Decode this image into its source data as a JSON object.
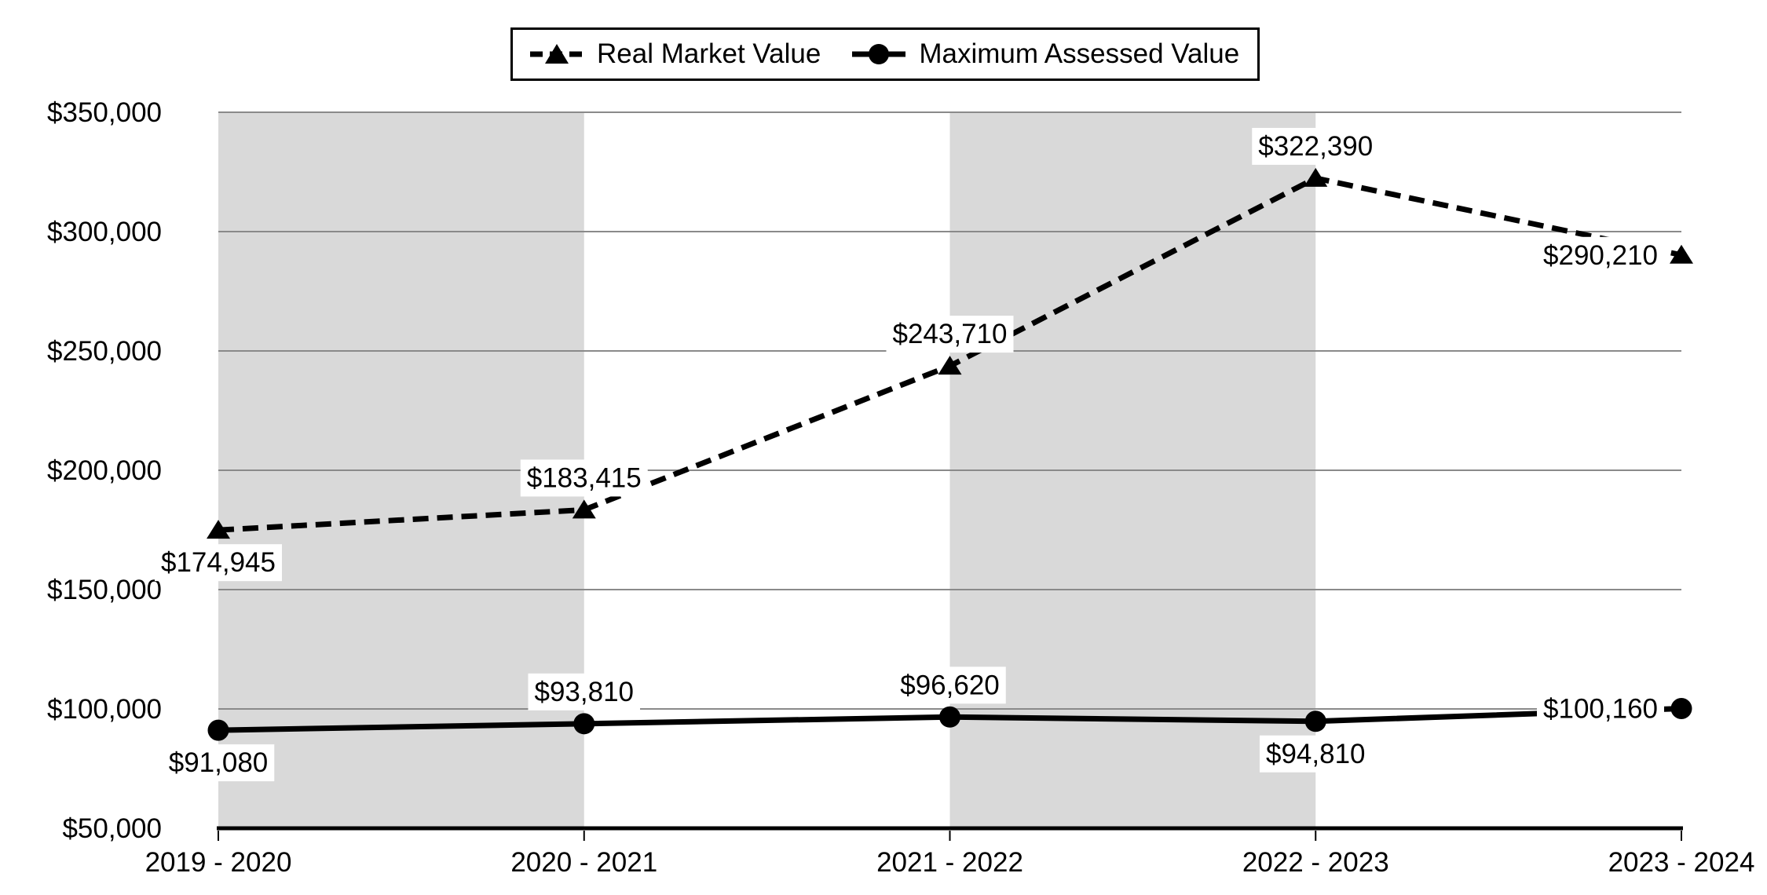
{
  "chart_data": {
    "type": "line",
    "title": "",
    "categories": [
      "2019 - 2020",
      "2020 - 2021",
      "2021 - 2022",
      "2022 - 2023",
      "2023 - 2024"
    ],
    "series": [
      {
        "name": "Real Market Value",
        "style": "dashed",
        "marker": "triangle",
        "color": "#000000",
        "values": [
          174945,
          183415,
          243710,
          322390,
          290210
        ],
        "labels": [
          "$174,945",
          "$183,415",
          "$243,710",
          "$322,390",
          "$290,210"
        ],
        "label_positions": [
          "below",
          "above",
          "above",
          "above",
          "left"
        ]
      },
      {
        "name": "Maximum Assessed Value",
        "style": "solid",
        "marker": "circle",
        "color": "#000000",
        "values": [
          91080,
          93810,
          96620,
          94810,
          100160
        ],
        "labels": [
          "$91,080",
          "$93,810",
          "$96,620",
          "$94,810",
          "$100,160"
        ],
        "label_positions": [
          "below",
          "above",
          "above",
          "below",
          "left"
        ]
      }
    ],
    "y_axis": {
      "min": 50000,
      "max": 350000,
      "step": 50000,
      "tick_labels": [
        "$350,000",
        "$300,000",
        "$250,000",
        "$200,000",
        "$150,000",
        "$100,000",
        "$50,000"
      ]
    },
    "x_axis": {
      "tick_marks": true
    },
    "shaded_bands": [
      [
        0,
        1
      ],
      [
        2,
        3
      ]
    ],
    "colors": {
      "band": "#d9d9d9",
      "gridline": "#8a8a8a",
      "axis": "#000000",
      "series": "#000000",
      "background": "#ffffff"
    },
    "grid": "horizontal",
    "legend_position": "top"
  }
}
